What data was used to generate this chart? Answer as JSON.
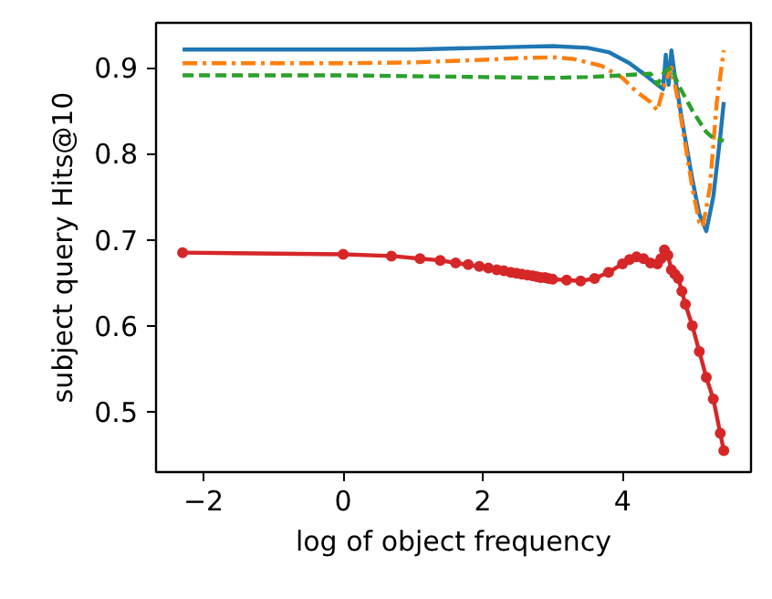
{
  "chart_data": {
    "type": "line",
    "xlabel": "log of object frequency",
    "ylabel": "subject query Hits@10",
    "xlim": [
      -2.68,
      5.84
    ],
    "ylim": [
      0.43,
      0.952
    ],
    "xticks": [
      -2,
      0,
      2,
      4
    ],
    "yticks": [
      0.5,
      0.6,
      0.7,
      0.8,
      0.9
    ],
    "grid": false,
    "series": [
      {
        "color": "#1f77b4",
        "line_style": "solid",
        "marker": "none",
        "x": [
          -2.3,
          0,
          1,
          2,
          2.5,
          3,
          3.5,
          3.8,
          4.1,
          4.3,
          4.5,
          4.58,
          4.62,
          4.66,
          4.7,
          4.75,
          4.85,
          5.0,
          5.1,
          5.2,
          5.3,
          5.4,
          5.45
        ],
        "values": [
          0.921,
          0.921,
          0.921,
          0.923,
          0.924,
          0.925,
          0.923,
          0.918,
          0.905,
          0.893,
          0.88,
          0.875,
          0.915,
          0.88,
          0.92,
          0.89,
          0.84,
          0.77,
          0.73,
          0.71,
          0.75,
          0.82,
          0.86
        ]
      },
      {
        "color": "#ff7f0e",
        "line_style": "dashdot",
        "marker": "none",
        "x": [
          -2.3,
          0,
          1,
          2,
          2.5,
          3,
          3.3,
          3.7,
          4.0,
          4.2,
          4.4,
          4.5,
          4.6,
          4.7,
          4.8,
          5.0,
          5.1,
          5.15,
          5.25,
          5.35,
          5.45
        ],
        "values": [
          0.905,
          0.905,
          0.906,
          0.909,
          0.911,
          0.912,
          0.91,
          0.902,
          0.888,
          0.872,
          0.86,
          0.85,
          0.88,
          0.9,
          0.86,
          0.76,
          0.72,
          0.715,
          0.76,
          0.86,
          0.92
        ]
      },
      {
        "color": "#2ca02c",
        "line_style": "dashed",
        "marker": "none",
        "x": [
          -2.3,
          0,
          1,
          2,
          3,
          3.5,
          4.0,
          4.4,
          4.5,
          4.6,
          4.7,
          4.8,
          5.0,
          5.2,
          5.3,
          5.45
        ],
        "values": [
          0.891,
          0.891,
          0.89,
          0.889,
          0.888,
          0.889,
          0.891,
          0.893,
          0.88,
          0.895,
          0.9,
          0.88,
          0.85,
          0.825,
          0.818,
          0.815
        ]
      },
      {
        "color": "#d62728",
        "line_style": "solid",
        "marker": "circle",
        "x": [
          -2.3,
          0,
          0.69,
          1.1,
          1.39,
          1.61,
          1.79,
          1.95,
          2.08,
          2.2,
          2.3,
          2.4,
          2.48,
          2.56,
          2.64,
          2.71,
          2.77,
          2.83,
          2.89,
          2.94,
          3.0,
          3.2,
          3.4,
          3.6,
          3.8,
          4.0,
          4.1,
          4.2,
          4.3,
          4.4,
          4.5,
          4.55,
          4.6,
          4.65,
          4.7,
          4.75,
          4.8,
          4.85,
          4.9,
          5.0,
          5.1,
          5.2,
          5.3,
          5.4,
          5.45
        ],
        "values": [
          0.685,
          0.683,
          0.681,
          0.678,
          0.676,
          0.673,
          0.671,
          0.669,
          0.667,
          0.665,
          0.664,
          0.662,
          0.661,
          0.66,
          0.659,
          0.658,
          0.657,
          0.656,
          0.656,
          0.655,
          0.654,
          0.653,
          0.652,
          0.655,
          0.662,
          0.672,
          0.677,
          0.68,
          0.678,
          0.673,
          0.672,
          0.678,
          0.688,
          0.682,
          0.665,
          0.66,
          0.655,
          0.64,
          0.625,
          0.6,
          0.57,
          0.54,
          0.515,
          0.475,
          0.455
        ]
      }
    ]
  }
}
